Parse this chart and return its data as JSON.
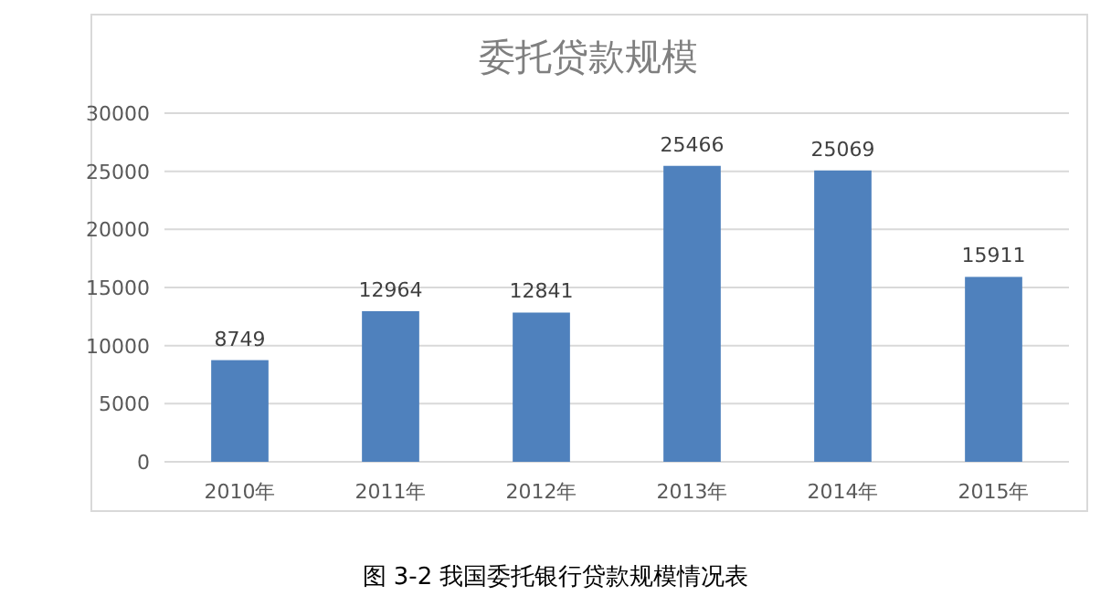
{
  "chart_data": {
    "type": "bar",
    "title": "委托贷款规模",
    "categories": [
      "2010年",
      "2011年",
      "2012年",
      "2013年",
      "2014年",
      "2015年"
    ],
    "values": [
      8749,
      12964,
      12841,
      25466,
      25069,
      15911
    ],
    "color": "#4f81bd",
    "ylim": [
      0,
      30000
    ],
    "yticks": [
      0,
      5000,
      10000,
      15000,
      20000,
      25000,
      30000
    ],
    "grid": "y",
    "data_labels": true,
    "annotations": [
      "图 3-2  我国委托银行贷款规模情况表"
    ]
  }
}
